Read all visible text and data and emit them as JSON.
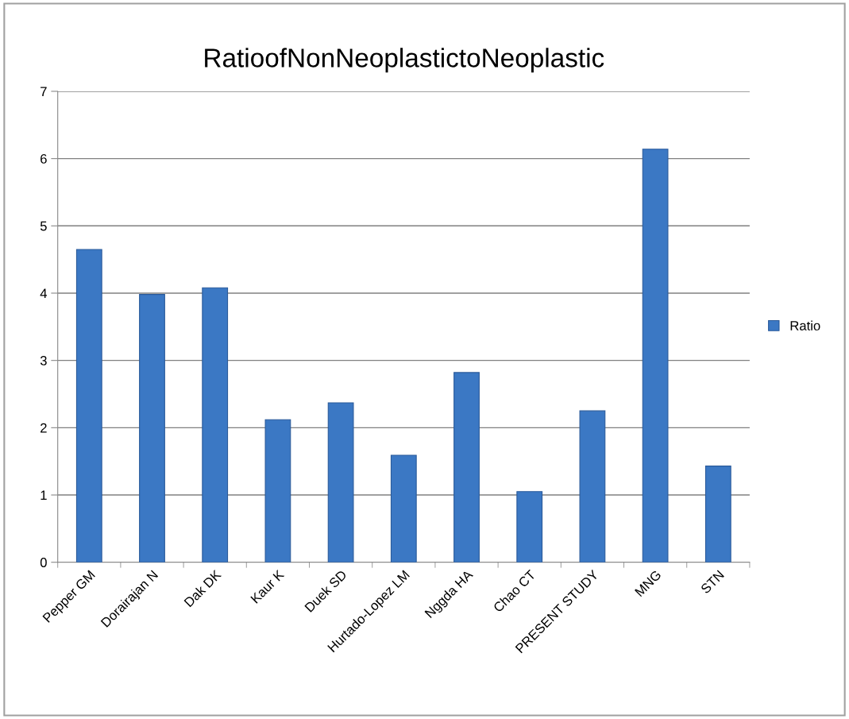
{
  "chart_data": {
    "type": "bar",
    "title": "RatioofNonNeoplastictoNeoplastic",
    "categories": [
      "Pepper GM",
      "Dorairajan N",
      "Dak DK",
      "Kaur K",
      "Duek SD",
      "Hurtado-Lopez LM",
      "Nggda HA",
      "Chao CT",
      "PRESENT STUDY",
      "MNG",
      "STN"
    ],
    "series": [
      {
        "name": "Ratio",
        "color": "#3b78c4",
        "values": [
          4.65,
          3.98,
          4.08,
          2.12,
          2.37,
          1.59,
          2.82,
          1.05,
          2.25,
          6.14,
          1.43
        ]
      }
    ],
    "ylim": [
      0,
      7
    ],
    "yticks": [
      0,
      1,
      2,
      3,
      4,
      5,
      6,
      7
    ],
    "grid": "y",
    "legend": "right"
  }
}
